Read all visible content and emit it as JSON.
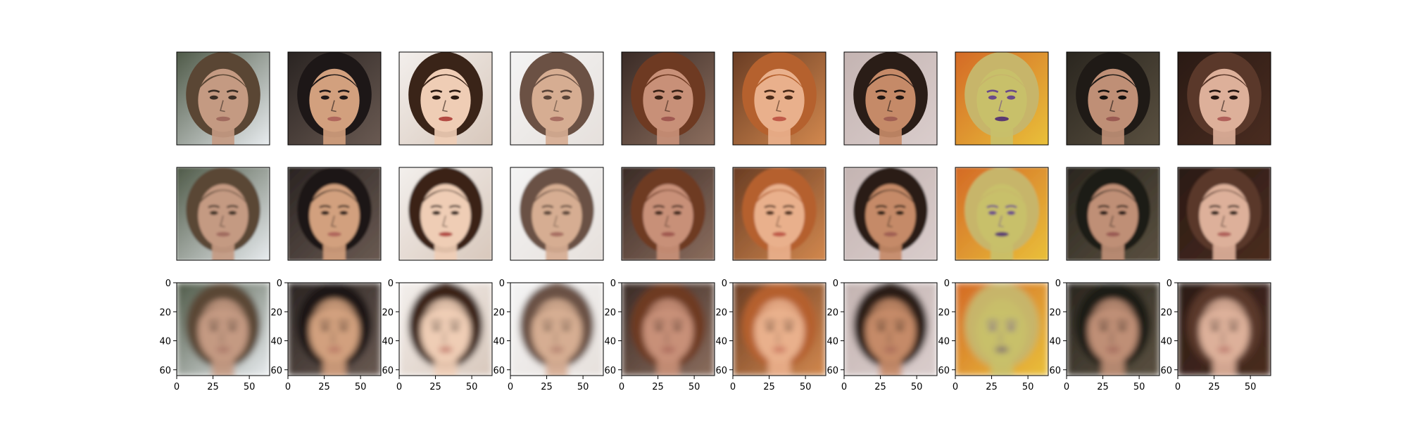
{
  "figure": {
    "rows": 3,
    "columns": 10,
    "row_types": [
      "original",
      "reconstruction",
      "blurred_reconstruction"
    ],
    "bottom_row_axes": {
      "x_ticks": [
        "0",
        "25",
        "50"
      ],
      "y_ticks": [
        "0",
        "20",
        "40",
        "60"
      ],
      "x_tick_values": [
        0,
        25,
        50
      ],
      "y_tick_values": [
        0,
        20,
        40,
        60
      ],
      "image_size": 64
    },
    "colors": {
      "frame": "#000000",
      "background": "#ffffff"
    },
    "faces": [
      {
        "name": "man-short-hair",
        "skin": "#c49a82",
        "hair": "#5a4634",
        "bg": "#4f5a48",
        "bg2": "#e8ecef",
        "lip": "#a06a5e",
        "shadow": "#3a2d24"
      },
      {
        "name": "woman-dark-wavy-hair",
        "skin": "#d2a07e",
        "hair": "#1d1717",
        "bg": "#2a2422",
        "bg2": "#6a5a52",
        "lip": "#b0665c",
        "shadow": "#201818"
      },
      {
        "name": "woman-vintage-curls",
        "skin": "#efcdb5",
        "hair": "#3a2418",
        "bg": "#f3efec",
        "bg2": "#d8c8bc",
        "lip": "#b34a42",
        "shadow": "#2b1a12"
      },
      {
        "name": "woman-older-light-hair",
        "skin": "#d6ad92",
        "hair": "#6b5144",
        "bg": "#f4f4f4",
        "bg2": "#e6e0dc",
        "lip": "#a86e62",
        "shadow": "#5a4438"
      },
      {
        "name": "woman-red-hair",
        "skin": "#c89078",
        "hair": "#6e3a22",
        "bg": "#3a2b26",
        "bg2": "#8c6e5e",
        "lip": "#a05850",
        "shadow": "#3a2216"
      },
      {
        "name": "woman-painted-blonde",
        "skin": "#e9b08c",
        "hair": "#b5612e",
        "bg": "#6a3d24",
        "bg2": "#d2884e",
        "lip": "#c05a48",
        "shadow": "#4a2a18"
      },
      {
        "name": "woman-curly-dark-hair",
        "skin": "#c58a68",
        "hair": "#2a1d17",
        "bg": "#c4b4b2",
        "bg2": "#dacdcc",
        "lip": "#a05e52",
        "shadow": "#1f1511"
      },
      {
        "name": "painted-purple-face",
        "skin": "#c8c06a",
        "hair": "#c7b56a",
        "bg": "#d46a26",
        "bg2": "#e9c03a",
        "lip": "#5a3a72",
        "shadow": "#6a4a8a"
      },
      {
        "name": "woman-long-dark-hair",
        "skin": "#bf8f76",
        "hair": "#1f1a16",
        "bg": "#2a261f",
        "bg2": "#5a5040",
        "lip": "#9a5a52",
        "shadow": "#15110e"
      },
      {
        "name": "woman-side-profile",
        "skin": "#ddb09a",
        "hair": "#5a382a",
        "bg": "#2a1a14",
        "bg2": "#4a2c20",
        "lip": "#b0605a",
        "shadow": "#241510"
      }
    ]
  }
}
